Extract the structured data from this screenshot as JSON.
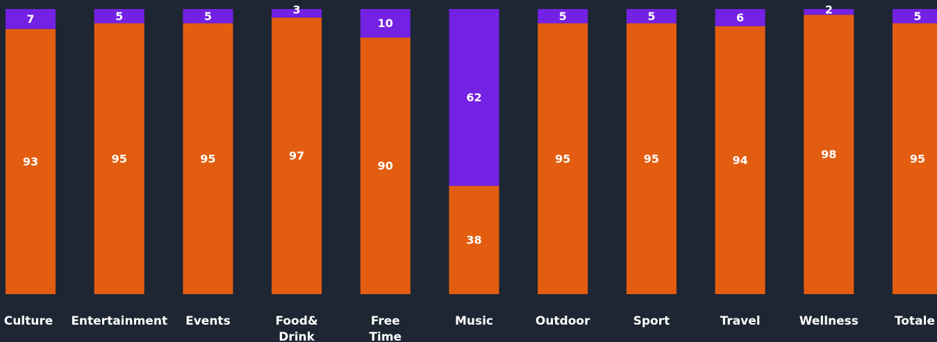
{
  "chart_data": {
    "type": "bar",
    "stacked": true,
    "categories": [
      "Culture",
      "Entertainment",
      "Events",
      "Food& Drink",
      "Free Time",
      "Music",
      "Outdoor",
      "Sport",
      "Travel",
      "Wellness",
      "Totale"
    ],
    "series": [
      {
        "values": [
          93,
          95,
          95,
          97,
          90,
          38,
          95,
          95,
          94,
          98,
          95
        ]
      },
      {
        "values": [
          7,
          5,
          5,
          3,
          10,
          62,
          5,
          5,
          6,
          2,
          5
        ]
      }
    ],
    "ylim": [
      0,
      100
    ],
    "grid": false,
    "legend": "none",
    "colors": {
      "background": "#1e2633",
      "series_1": "#e35d10",
      "series_2": "#7321e3",
      "label_text": "#ffffff"
    }
  }
}
